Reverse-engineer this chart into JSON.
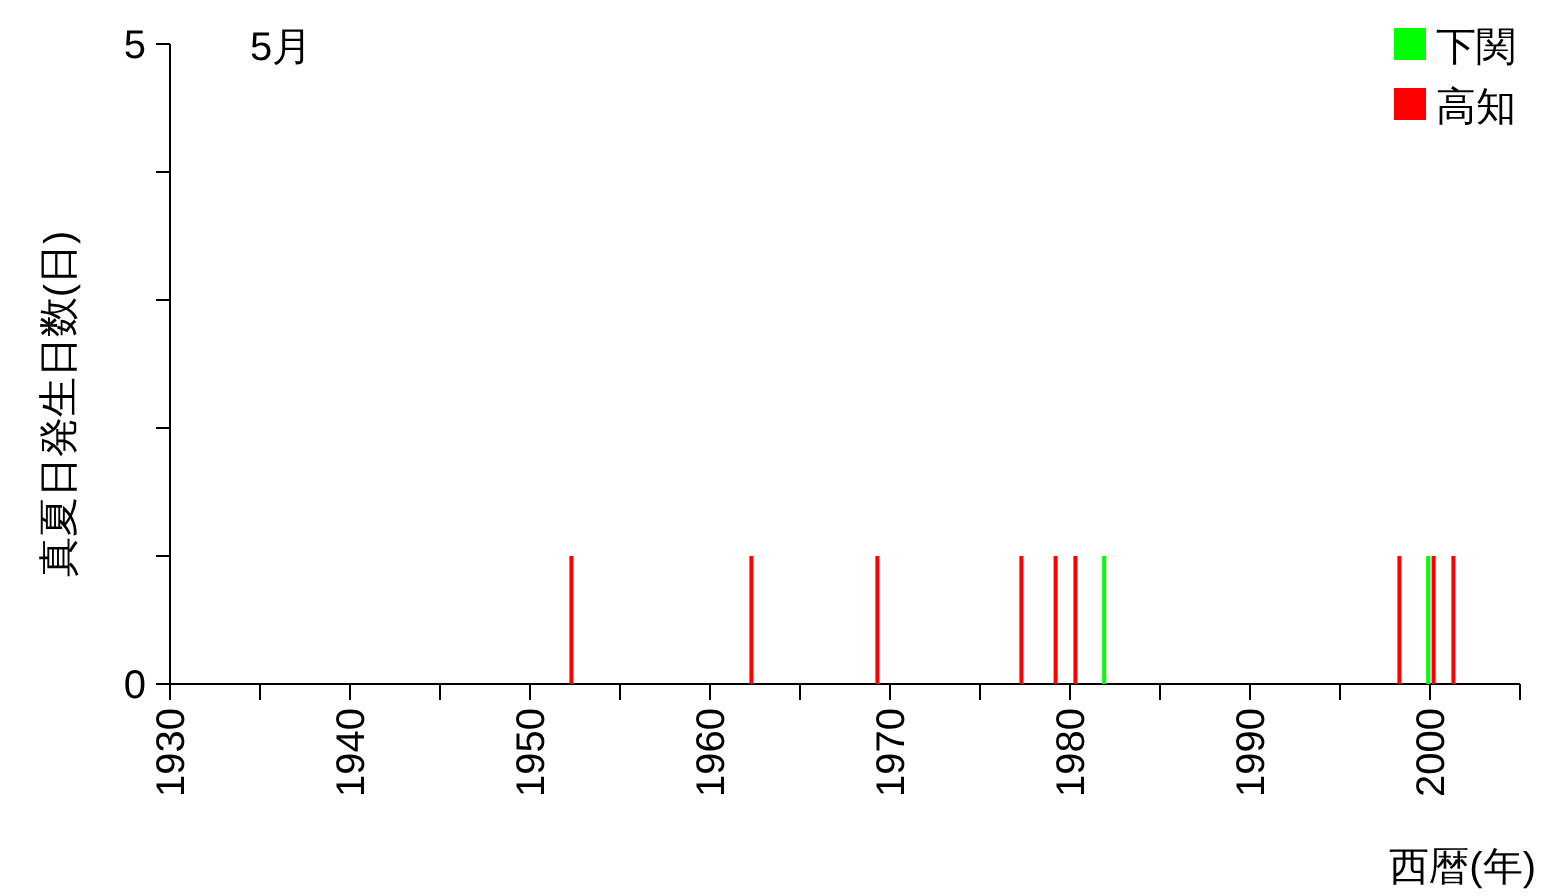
{
  "chart_data": {
    "type": "bar",
    "title": "5月",
    "xlabel": "西暦(年)",
    "ylabel": "真夏日発生日数(日)",
    "xlim": [
      1930,
      2005
    ],
    "ylim": [
      0,
      5
    ],
    "xticks": [
      1930,
      {
        "value": 1935,
        "label": null
      },
      1940,
      {
        "value": 1945,
        "label": null
      },
      1950,
      {
        "value": 1955,
        "label": null
      },
      1960,
      {
        "value": 1965,
        "label": null
      },
      1970,
      {
        "value": 1975,
        "label": null
      },
      1980,
      {
        "value": 1985,
        "label": null
      },
      1990,
      {
        "value": 1995,
        "label": null
      },
      2000,
      {
        "value": 2005,
        "label": null
      }
    ],
    "yticks": [
      0,
      {
        "value": 1,
        "label": null
      },
      {
        "value": 2,
        "label": null
      },
      {
        "value": 3,
        "label": null
      },
      {
        "value": 4,
        "label": null
      },
      5
    ],
    "legend": "top right",
    "series": [
      {
        "name": "下関",
        "color": "#00ff00",
        "x": [
          1981.9,
          1999.9
        ],
        "values": [
          1,
          1
        ]
      },
      {
        "name": "高知",
        "color": "#ff0000",
        "x": [
          1952.3,
          1962.3,
          1969.3,
          1977.3,
          1979.2,
          1980.3,
          1998.3,
          2000.2,
          2001.3
        ],
        "values": [
          1,
          1,
          1,
          1,
          1,
          1,
          1,
          1,
          1
        ]
      }
    ]
  }
}
